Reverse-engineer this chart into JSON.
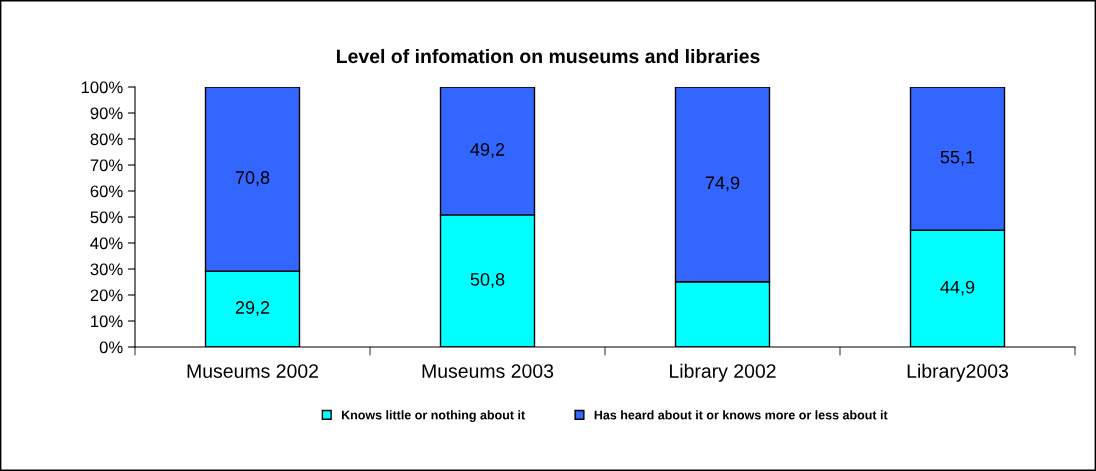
{
  "chart_data": {
    "type": "bar",
    "title": "Level of infomation on museums and libraries",
    "stacked": true,
    "categories": [
      "Museums 2002",
      "Museums 2003",
      "Library 2002",
      "Library2003"
    ],
    "series": [
      {
        "name": "Knows little or nothing about it",
        "color": "#00ffff",
        "values": [
          29.2,
          50.8,
          25.1,
          44.9
        ],
        "value_labels": [
          "29,2",
          "50,8",
          null,
          "44,9"
        ]
      },
      {
        "name": "Has heard about it or knows more or less about it",
        "color": "#3366ff",
        "values": [
          70.8,
          49.2,
          74.9,
          55.1
        ],
        "value_labels": [
          "70,8",
          "49,2",
          "74,9",
          "55,1"
        ]
      }
    ],
    "ylim": [
      0,
      100
    ],
    "yticks": [
      {
        "value": 0,
        "label": "0%"
      },
      {
        "value": 10,
        "label": "10%"
      },
      {
        "value": 20,
        "label": "20%"
      },
      {
        "value": 30,
        "label": "30%"
      },
      {
        "value": 40,
        "label": "40%"
      },
      {
        "value": 50,
        "label": "50%"
      },
      {
        "value": 60,
        "label": "60%"
      },
      {
        "value": 70,
        "label": "70%"
      },
      {
        "value": 80,
        "label": "80%"
      },
      {
        "value": 90,
        "label": "90%"
      },
      {
        "value": 100,
        "label": "100%"
      }
    ],
    "grid": false,
    "legend": "bottom"
  }
}
